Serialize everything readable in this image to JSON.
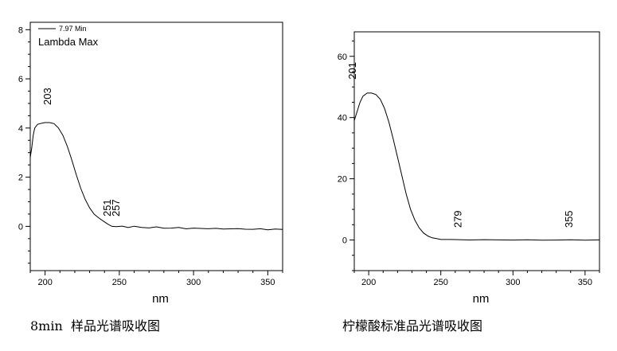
{
  "chart_data": [
    {
      "type": "line",
      "caption": "8min  样品光谱吸收图",
      "xlabel": "nm",
      "xlim": [
        190,
        360
      ],
      "ylim": [
        -1.8,
        8.3
      ],
      "x_ticks": [
        200,
        250,
        300,
        350
      ],
      "y_ticks": [
        0,
        2,
        4,
        6,
        8
      ],
      "legend": {
        "line_label": "7.97 Min",
        "subtitle": "Lambda Max"
      },
      "annotations": [
        {
          "text": "203",
          "x": 203,
          "y": 5.0
        },
        {
          "text": "251",
          "x": 243,
          "y": 0.4
        },
        {
          "text": "257",
          "x": 249,
          "y": 0.4
        }
      ],
      "series": [
        {
          "points": [
            [
              190,
              2.8
            ],
            [
              191,
              3.2
            ],
            [
              192,
              3.7
            ],
            [
              193,
              4.0
            ],
            [
              195,
              4.15
            ],
            [
              198,
              4.2
            ],
            [
              200,
              4.22
            ],
            [
              203,
              4.22
            ],
            [
              206,
              4.18
            ],
            [
              209,
              4.0
            ],
            [
              212,
              3.7
            ],
            [
              215,
              3.25
            ],
            [
              218,
              2.7
            ],
            [
              221,
              2.1
            ],
            [
              224,
              1.55
            ],
            [
              227,
              1.1
            ],
            [
              230,
              0.75
            ],
            [
              233,
              0.5
            ],
            [
              236,
              0.35
            ],
            [
              239,
              0.22
            ],
            [
              242,
              0.1
            ],
            [
              245,
              0.0
            ],
            [
              248,
              -0.02
            ],
            [
              252,
              0.0
            ],
            [
              256,
              -0.03
            ],
            [
              260,
              -0.01
            ],
            [
              265,
              -0.04
            ],
            [
              270,
              -0.05
            ],
            [
              275,
              -0.04
            ],
            [
              280,
              -0.06
            ],
            [
              285,
              -0.07
            ],
            [
              290,
              -0.06
            ],
            [
              295,
              -0.08
            ],
            [
              300,
              -0.08
            ],
            [
              305,
              -0.09
            ],
            [
              310,
              -0.08
            ],
            [
              315,
              -0.1
            ],
            [
              320,
              -0.1
            ],
            [
              325,
              -0.09
            ],
            [
              330,
              -0.11
            ],
            [
              335,
              -0.1
            ],
            [
              340,
              -0.12
            ],
            [
              345,
              -0.11
            ],
            [
              350,
              -0.12
            ],
            [
              355,
              -0.12
            ],
            [
              360,
              -0.13
            ]
          ]
        }
      ]
    },
    {
      "type": "line",
      "caption": "柠檬酸标准品光谱吸收图",
      "xlabel": "nm",
      "xlim": [
        190,
        360
      ],
      "ylim": [
        -10,
        68
      ],
      "x_ticks": [
        200,
        250,
        300,
        350
      ],
      "y_ticks": [
        0,
        20,
        40,
        60
      ],
      "annotations": [
        {
          "text": "201",
          "x": 190,
          "y": 53
        },
        {
          "text": "279",
          "x": 263,
          "y": 4
        },
        {
          "text": "355",
          "x": 340,
          "y": 4
        }
      ],
      "series": [
        {
          "points": [
            [
              190,
              39
            ],
            [
              192,
              42
            ],
            [
              194,
              45
            ],
            [
              196,
              47
            ],
            [
              199,
              48
            ],
            [
              202,
              48
            ],
            [
              205,
              47.5
            ],
            [
              208,
              46
            ],
            [
              211,
              43
            ],
            [
              214,
              38.5
            ],
            [
              217,
              33
            ],
            [
              220,
              27
            ],
            [
              223,
              21
            ],
            [
              226,
              15
            ],
            [
              229,
              10
            ],
            [
              232,
              6.5
            ],
            [
              235,
              4
            ],
            [
              238,
              2.3
            ],
            [
              241,
              1.3
            ],
            [
              244,
              0.7
            ],
            [
              247,
              0.4
            ],
            [
              250,
              0.25
            ],
            [
              255,
              0.15
            ],
            [
              260,
              0.1
            ],
            [
              270,
              0.1
            ],
            [
              280,
              0.05
            ],
            [
              290,
              0.05
            ],
            [
              300,
              0.05
            ],
            [
              310,
              0.0
            ],
            [
              320,
              0.0
            ],
            [
              330,
              0.0
            ],
            [
              340,
              0.0
            ],
            [
              350,
              0.0
            ],
            [
              360,
              0.0
            ]
          ]
        }
      ]
    }
  ]
}
